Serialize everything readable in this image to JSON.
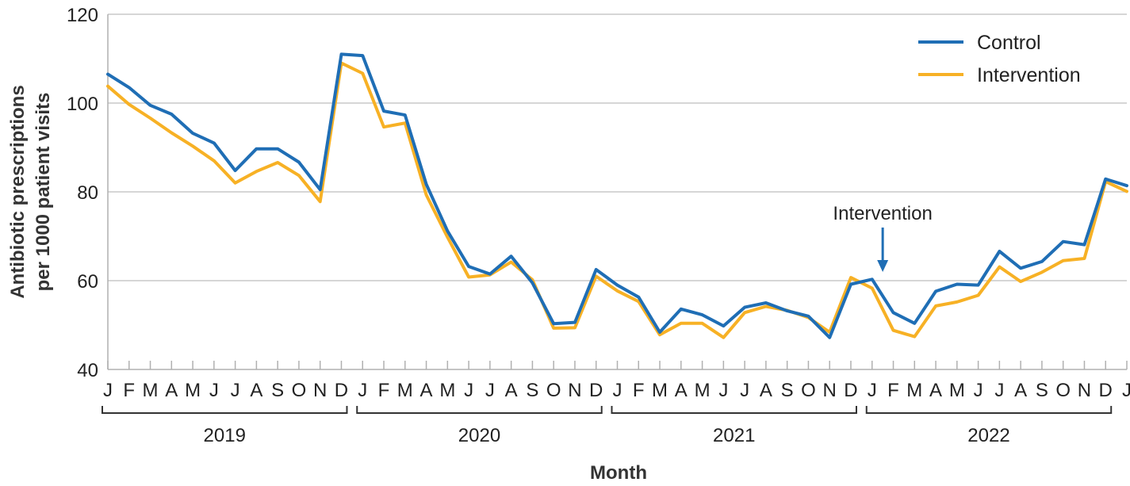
{
  "chart_data": {
    "type": "line",
    "title": "",
    "xlabel": "Month",
    "ylabel_lines": [
      "Antibiotic prescriptions",
      "per 1000 patient visits"
    ],
    "ylim": [
      40,
      120
    ],
    "yticks": [
      40,
      60,
      80,
      100,
      120
    ],
    "grid": true,
    "legend_position": "top-right",
    "months": [
      "J",
      "F",
      "M",
      "A",
      "M",
      "J",
      "J",
      "A",
      "S",
      "O",
      "N",
      "D",
      "J",
      "F",
      "M",
      "A",
      "M",
      "J",
      "J",
      "A",
      "S",
      "O",
      "N",
      "D",
      "J",
      "F",
      "M",
      "A",
      "M",
      "J",
      "J",
      "A",
      "S",
      "O",
      "N",
      "D",
      "J",
      "F",
      "M",
      "A",
      "M",
      "J",
      "J",
      "A",
      "S",
      "O",
      "N",
      "D",
      "J"
    ],
    "years": [
      "2019",
      "2020",
      "2021",
      "2022"
    ],
    "series": [
      {
        "name": "Control",
        "color": "#1f6eb5",
        "values": [
          106.5,
          103.5,
          99.5,
          97.5,
          93.2,
          91.0,
          84.8,
          89.7,
          89.7,
          86.7,
          80.5,
          111.0,
          110.7,
          98.2,
          97.3,
          81.7,
          71.2,
          63.2,
          61.5,
          65.5,
          59.5,
          50.3,
          50.6,
          62.5,
          59.0,
          56.3,
          48.4,
          53.6,
          52.3,
          49.8,
          54.0,
          55.0,
          53.2,
          52.0,
          47.2,
          59.2,
          60.3,
          52.8,
          50.4,
          57.6,
          59.2,
          59.0,
          66.6,
          62.8,
          64.3,
          68.8,
          68.1,
          82.9,
          81.4
        ]
      },
      {
        "name": "Intervention",
        "color": "#f7b125",
        "values": [
          103.8,
          99.7,
          96.6,
          93.3,
          90.3,
          87.0,
          82.0,
          84.6,
          86.6,
          83.7,
          77.8,
          109.0,
          106.7,
          94.6,
          95.5,
          79.3,
          69.8,
          60.8,
          61.3,
          64.2,
          60.2,
          49.3,
          49.4,
          61.0,
          57.7,
          55.3,
          47.8,
          50.4,
          50.4,
          47.2,
          52.8,
          54.2,
          53.3,
          51.7,
          48.4,
          60.7,
          58.3,
          48.8,
          47.4,
          54.3,
          55.2,
          56.7,
          63.1,
          59.8,
          61.9,
          64.5,
          65.0,
          82.3,
          80.1
        ]
      }
    ],
    "annotation": {
      "label": "Intervention",
      "month_index": 36.5
    }
  }
}
